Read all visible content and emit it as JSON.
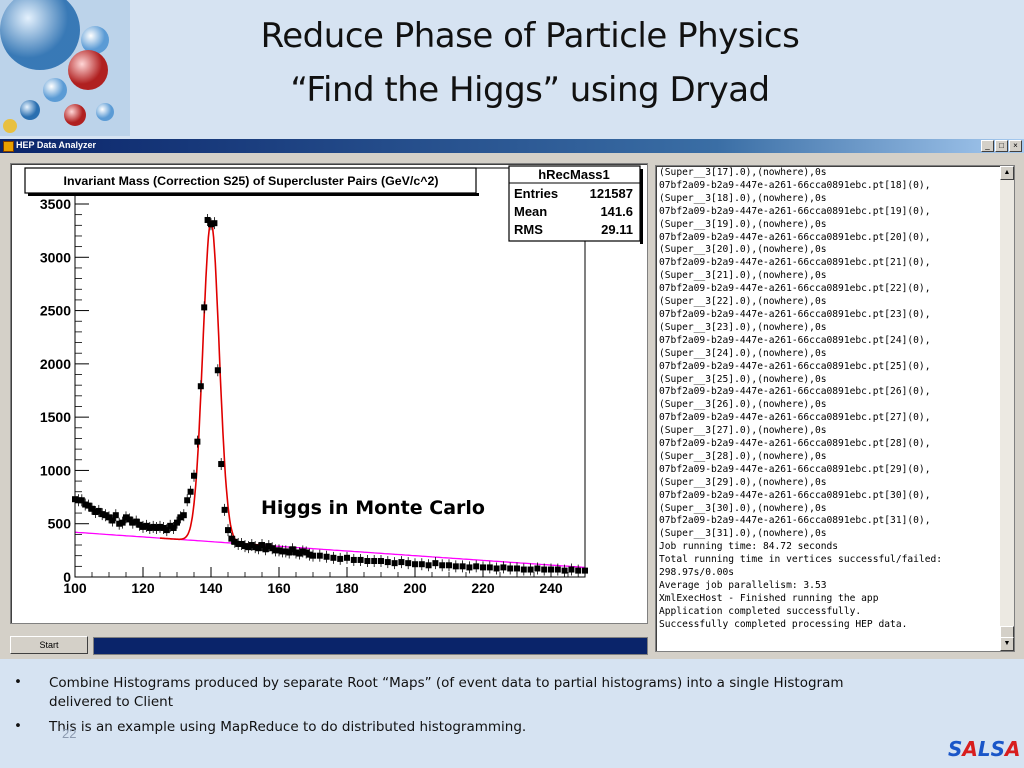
{
  "slide": {
    "title_line1": "Reduce Phase of Particle Physics",
    "title_line2": "“Find the Higgs” using Dryad",
    "page_number": "22",
    "logo": {
      "text": "SALSA",
      "letters": [
        {
          "ch": "S",
          "color": "#1a56c8"
        },
        {
          "ch": "A",
          "color": "#d81e1e"
        },
        {
          "ch": "L",
          "color": "#1a56c8"
        },
        {
          "ch": "S",
          "color": "#1a56c8"
        },
        {
          "ch": "A",
          "color": "#d81e1e"
        }
      ]
    },
    "bullets": [
      "Combine Histograms produced by separate Root “Maps” (of event data to partial histograms) into a single Histogram delivered to Client",
      "This is an example using MapReduce to do distributed histogramming."
    ],
    "bullet_symbol": "•"
  },
  "window": {
    "title": "HEP Data Analyzer",
    "buttons": {
      "minimize": "_",
      "maximize": "□",
      "close": "×"
    },
    "start_button": "Start",
    "progress": 1.0
  },
  "annotation": "Higgs in Monte Carlo",
  "stats_box": {
    "name": "hRecMass1",
    "rows": [
      {
        "label": "Entries",
        "value": "121587"
      },
      {
        "label": "Mean",
        "value": "141.6"
      },
      {
        "label": "RMS",
        "value": "29.11"
      }
    ]
  },
  "chart_data": {
    "type": "scatter",
    "title": "Invariant Mass (Correction S25) of Supercluster Pairs (GeV/c^2)",
    "xlim": [
      100,
      250
    ],
    "ylim": [
      0,
      3500
    ],
    "xticks": [
      100,
      120,
      140,
      160,
      180,
      200,
      220,
      240
    ],
    "yticks": [
      0,
      500,
      1000,
      1500,
      2000,
      2500,
      3000,
      3500
    ],
    "fit_peak": {
      "mean": 140,
      "sigma": 2.4,
      "height": 3000
    },
    "background": {
      "start": 420,
      "slope": 2.2
    },
    "series": [
      {
        "x": [
          100,
          101,
          102,
          103,
          104,
          105,
          106,
          107,
          108,
          109,
          110,
          111,
          112,
          113,
          114,
          115,
          116,
          117,
          118,
          119,
          120,
          121,
          122,
          123,
          124,
          125,
          126,
          127,
          128,
          129,
          130,
          131,
          132,
          133,
          134,
          135,
          136,
          137,
          138,
          139,
          140,
          141,
          142,
          143,
          144,
          145,
          146,
          147,
          148,
          149,
          150,
          151,
          152,
          153,
          154,
          155,
          156,
          157,
          158,
          159,
          160,
          161,
          162,
          163,
          164,
          165,
          166,
          167,
          168,
          169,
          170,
          172,
          174,
          176,
          178,
          180,
          182,
          184,
          186,
          188,
          190,
          192,
          194,
          196,
          198,
          200,
          202,
          204,
          206,
          208,
          210,
          212,
          214,
          216,
          218,
          220,
          222,
          224,
          226,
          228,
          230,
          232,
          234,
          236,
          238,
          240,
          242,
          244,
          246,
          248,
          250
        ],
        "y": [
          730,
          720,
          720,
          680,
          670,
          640,
          610,
          620,
          590,
          580,
          560,
          530,
          580,
          500,
          510,
          560,
          540,
          510,
          520,
          490,
          470,
          480,
          460,
          470,
          460,
          470,
          460,
          440,
          480,
          460,
          510,
          560,
          580,
          720,
          800,
          950,
          1270,
          1790,
          2530,
          3350,
          3310,
          3320,
          1940,
          1060,
          630,
          440,
          360,
          330,
          310,
          310,
          290,
          280,
          300,
          280,
          270,
          300,
          260,
          290,
          270,
          250,
          250,
          240,
          240,
          230,
          260,
          230,
          220,
          240,
          230,
          210,
          200,
          200,
          190,
          180,
          170,
          180,
          160,
          160,
          150,
          150,
          150,
          140,
          130,
          140,
          130,
          120,
          120,
          110,
          130,
          110,
          110,
          100,
          100,
          90,
          100,
          90,
          90,
          80,
          90,
          80,
          80,
          70,
          70,
          80,
          70,
          70,
          70,
          60,
          70,
          60,
          60
        ]
      }
    ]
  },
  "log_lines": [
    "(Super__3[17].0),(nowhere),0s",
    "07bf2a09-b2a9-447e-a261-66cca0891ebc.pt[18](0),",
    "(Super__3[18].0),(nowhere),0s",
    "07bf2a09-b2a9-447e-a261-66cca0891ebc.pt[19](0),",
    "(Super__3[19].0),(nowhere),0s",
    "07bf2a09-b2a9-447e-a261-66cca0891ebc.pt[20](0),",
    "(Super__3[20].0),(nowhere),0s",
    "07bf2a09-b2a9-447e-a261-66cca0891ebc.pt[21](0),",
    "(Super__3[21].0),(nowhere),0s",
    "07bf2a09-b2a9-447e-a261-66cca0891ebc.pt[22](0),",
    "(Super__3[22].0),(nowhere),0s",
    "07bf2a09-b2a9-447e-a261-66cca0891ebc.pt[23](0),",
    "(Super__3[23].0),(nowhere),0s",
    "07bf2a09-b2a9-447e-a261-66cca0891ebc.pt[24](0),",
    "(Super__3[24].0),(nowhere),0s",
    "07bf2a09-b2a9-447e-a261-66cca0891ebc.pt[25](0),",
    "(Super__3[25].0),(nowhere),0s",
    "07bf2a09-b2a9-447e-a261-66cca0891ebc.pt[26](0),",
    "(Super__3[26].0),(nowhere),0s",
    "07bf2a09-b2a9-447e-a261-66cca0891ebc.pt[27](0),",
    "(Super__3[27].0),(nowhere),0s",
    "07bf2a09-b2a9-447e-a261-66cca0891ebc.pt[28](0),",
    "(Super__3[28].0),(nowhere),0s",
    "07bf2a09-b2a9-447e-a261-66cca0891ebc.pt[29](0),",
    "(Super__3[29].0),(nowhere),0s",
    "07bf2a09-b2a9-447e-a261-66cca0891ebc.pt[30](0),",
    "(Super__3[30].0),(nowhere),0s",
    "07bf2a09-b2a9-447e-a261-66cca0891ebc.pt[31](0),",
    "(Super__3[31].0),(nowhere),0s",
    "Job running time: 84.72 seconds",
    "Total running time in vertices successful/failed:",
    "298.97s/0.00s",
    "Average job parallelism: 3.53",
    "XmlExecHost - Finished running the app",
    "Application completed successfully.",
    "Successfully completed processing HEP data."
  ],
  "colors": {
    "data_points": "#000000",
    "fit_curve": "#e00000",
    "background_fit": "#ff00ff",
    "window_title": "#0a246a",
    "slide_bg": "#d6e3f2"
  }
}
